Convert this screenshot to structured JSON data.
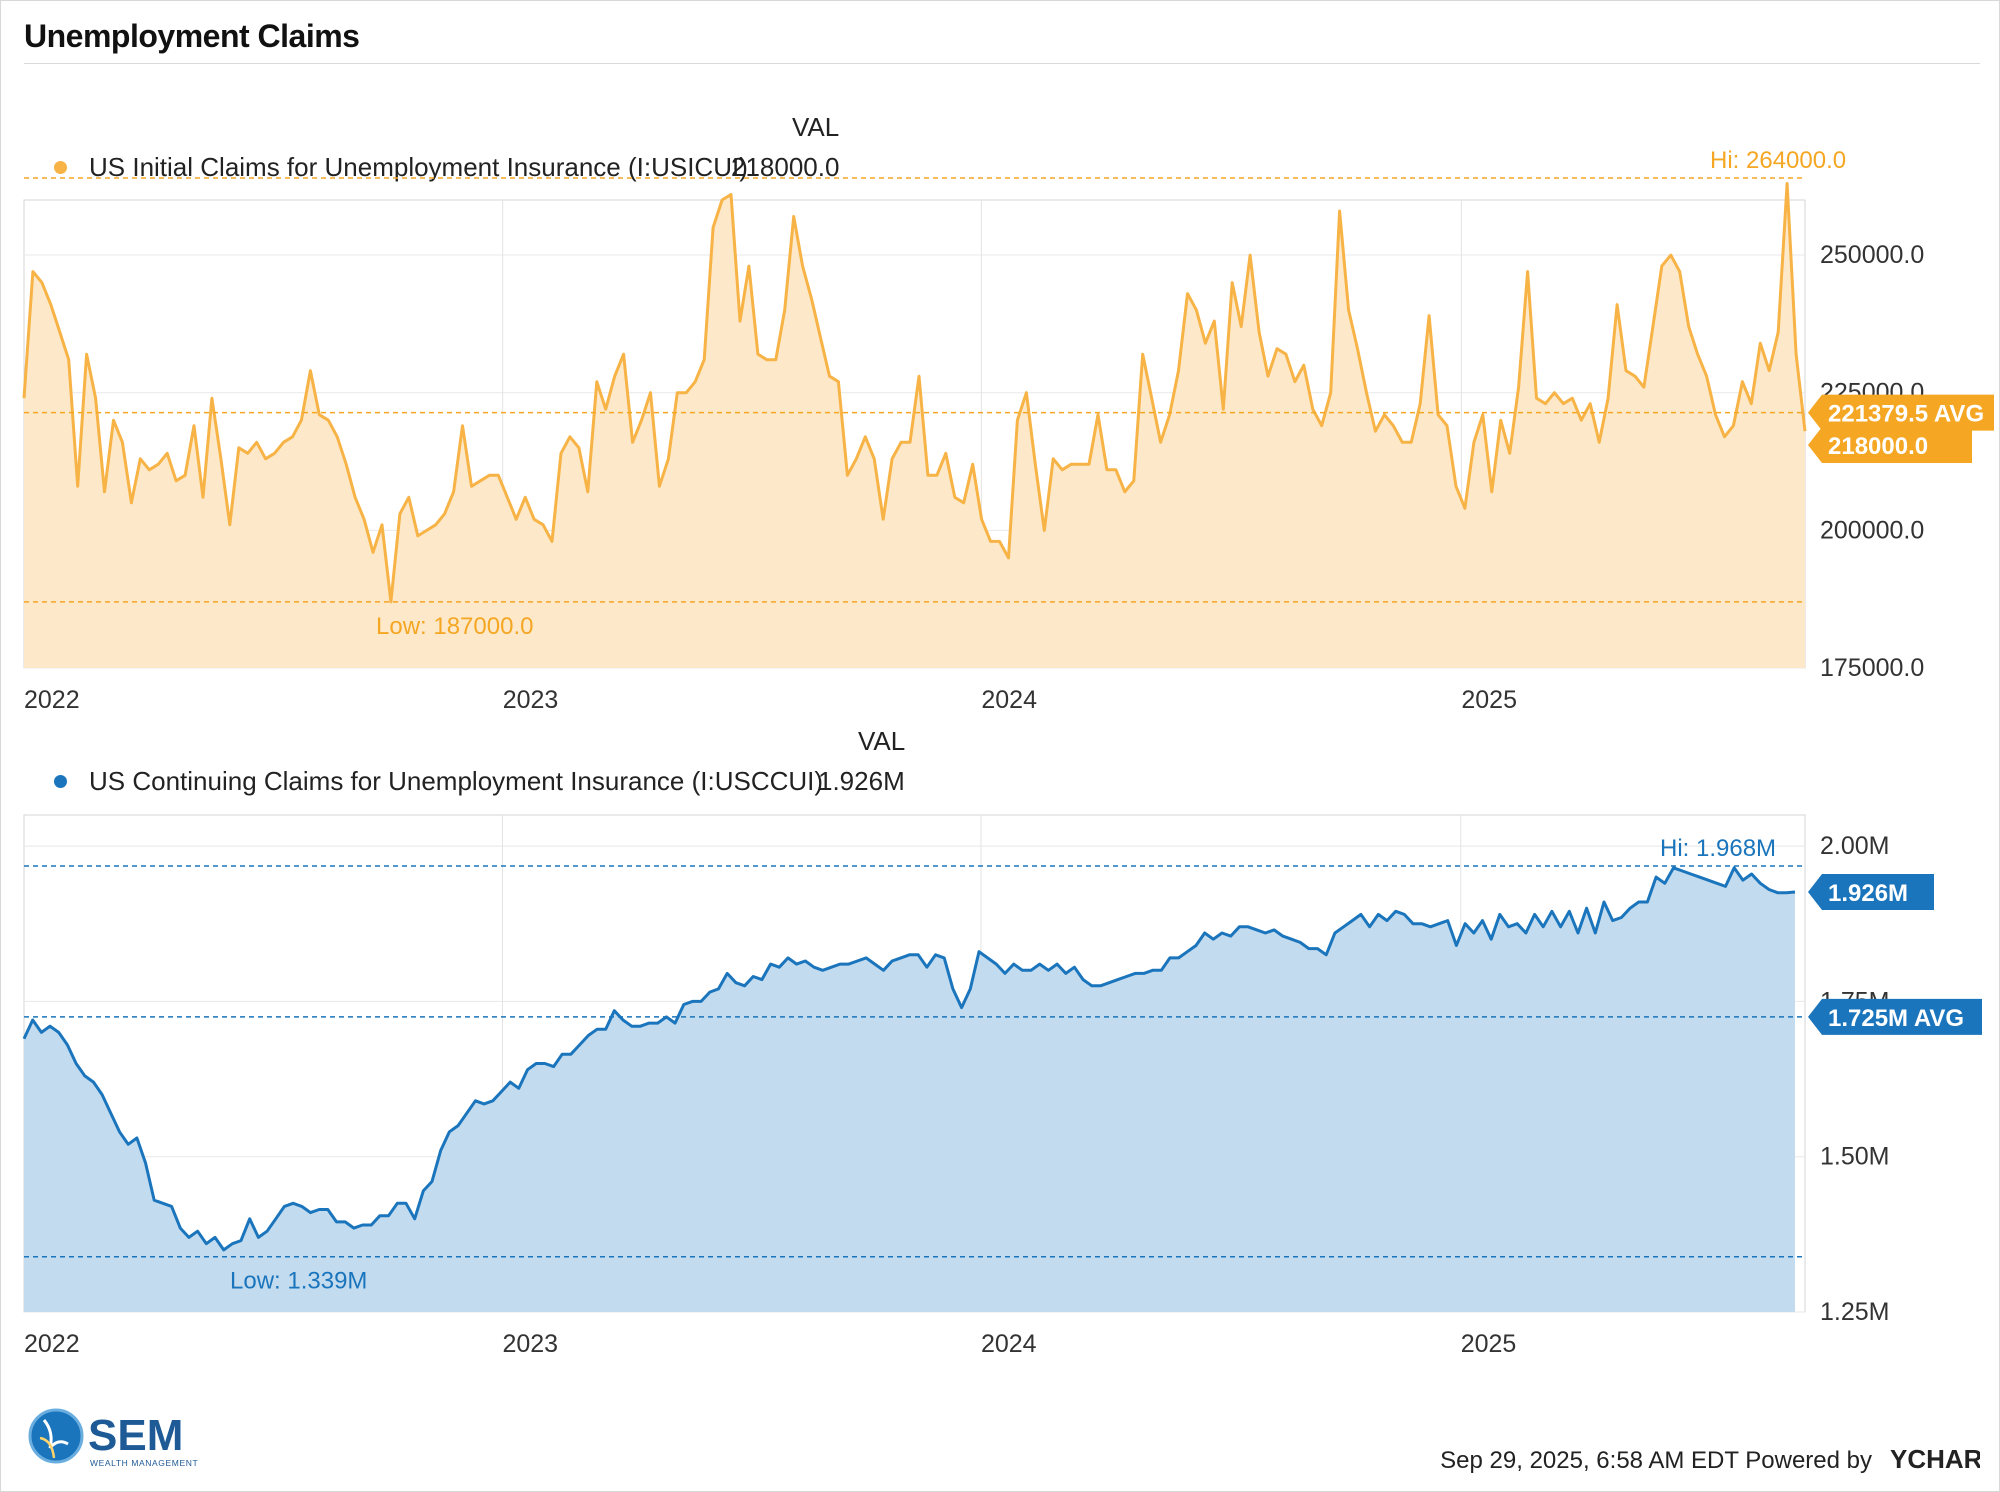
{
  "header": {
    "title": "Unemployment Claims"
  },
  "chart_data": [
    {
      "type": "area",
      "legend_header": "VAL",
      "series": [
        {
          "name": "US Initial Claims for Unemployment Insurance (I:USICUI)",
          "latest_value": "218000.0",
          "color": "#f7b346"
        }
      ],
      "x_ticks": [
        "2022",
        "2023",
        "2024",
        "2025"
      ],
      "y_ticks": [
        "175000.0",
        "200000.0",
        "225000.0",
        "250000.0"
      ],
      "ylim": [
        175000,
        260000
      ],
      "hi_label": "Hi: 264000.0",
      "low_label": "Low: 187000.0",
      "avg_label": "221379.5 AVG",
      "last_label": "218000.0",
      "x_start": "2022-01-01",
      "x_end": "2025-09-20",
      "values": [
        224000,
        247000,
        245000,
        241000,
        236000,
        231000,
        208000,
        232000,
        224000,
        207000,
        220000,
        216000,
        205000,
        213000,
        211000,
        212000,
        214000,
        209000,
        210000,
        219000,
        206000,
        224000,
        213000,
        201000,
        215000,
        214000,
        216000,
        213000,
        214000,
        216000,
        217000,
        220000,
        229000,
        221000,
        220000,
        217000,
        212000,
        206000,
        202000,
        196000,
        201000,
        187000,
        203000,
        206000,
        199000,
        200000,
        201000,
        203000,
        207000,
        219000,
        208000,
        209000,
        210000,
        210000,
        206000,
        202000,
        206000,
        202000,
        201000,
        198000,
        214000,
        217000,
        215000,
        207000,
        227000,
        222000,
        228000,
        232000,
        216000,
        220000,
        225000,
        208000,
        213000,
        225000,
        225000,
        227000,
        231000,
        255000,
        260000,
        261000,
        238000,
        248000,
        232000,
        231000,
        231000,
        240000,
        257000,
        248000,
        242000,
        235000,
        228000,
        227000,
        210000,
        213000,
        217000,
        213000,
        202000,
        213000,
        216000,
        216000,
        228000,
        210000,
        210000,
        214000,
        206000,
        205000,
        212000,
        202000,
        198000,
        198000,
        195000,
        220000,
        225000,
        212000,
        200000,
        213000,
        211000,
        212000,
        212000,
        212000,
        221000,
        211000,
        211000,
        207000,
        209000,
        232000,
        224000,
        216000,
        221000,
        229000,
        243000,
        240000,
        234000,
        238000,
        222000,
        245000,
        237000,
        250000,
        236000,
        228000,
        233000,
        232000,
        227000,
        230000,
        222000,
        219000,
        225000,
        258000,
        240000,
        233000,
        225000,
        218000,
        221000,
        219000,
        216000,
        216000,
        223000,
        239000,
        221000,
        219000,
        208000,
        204000,
        216000,
        221000,
        207000,
        220000,
        214000,
        226000,
        247000,
        224000,
        223000,
        225000,
        223000,
        224000,
        220000,
        223000,
        216000,
        224000,
        241000,
        229000,
        228000,
        226000,
        237000,
        248000,
        250000,
        247000,
        237000,
        232000,
        228000,
        221000,
        217000,
        219000,
        227000,
        223000,
        234000,
        229000,
        236000,
        263000,
        232000,
        218000
      ]
    },
    {
      "type": "area",
      "legend_header": "VAL",
      "series": [
        {
          "name": "US Continuing Claims for Unemployment Insurance (I:USCCUI)",
          "latest_value": "1.926M",
          "color": "#1a75bc"
        }
      ],
      "x_ticks": [
        "2022",
        "2023",
        "2024",
        "2025"
      ],
      "y_ticks": [
        "1.25M",
        "1.50M",
        "1.75M",
        "2.00M"
      ],
      "ylim": [
        1.25,
        2.05
      ],
      "hi_label": "Hi: 1.968M",
      "low_label": "Low: 1.339M",
      "avg_label": "1.725M AVG",
      "last_label": "1.926M",
      "x_start": "2022-01-01",
      "x_end": "2025-09-13",
      "values": [
        1.69,
        1.72,
        1.7,
        1.71,
        1.7,
        1.68,
        1.65,
        1.63,
        1.62,
        1.6,
        1.57,
        1.54,
        1.52,
        1.53,
        1.49,
        1.43,
        1.425,
        1.42,
        1.385,
        1.37,
        1.38,
        1.36,
        1.37,
        1.35,
        1.36,
        1.365,
        1.4,
        1.37,
        1.38,
        1.4,
        1.42,
        1.425,
        1.42,
        1.41,
        1.415,
        1.415,
        1.395,
        1.395,
        1.385,
        1.39,
        1.39,
        1.405,
        1.405,
        1.425,
        1.425,
        1.4,
        1.445,
        1.46,
        1.51,
        1.54,
        1.55,
        1.57,
        1.59,
        1.585,
        1.59,
        1.605,
        1.62,
        1.61,
        1.64,
        1.65,
        1.65,
        1.645,
        1.665,
        1.665,
        1.68,
        1.695,
        1.705,
        1.705,
        1.735,
        1.72,
        1.71,
        1.71,
        1.715,
        1.715,
        1.725,
        1.715,
        1.745,
        1.75,
        1.75,
        1.765,
        1.77,
        1.795,
        1.78,
        1.775,
        1.79,
        1.785,
        1.81,
        1.805,
        1.82,
        1.81,
        1.815,
        1.805,
        1.8,
        1.805,
        1.81,
        1.81,
        1.815,
        1.82,
        1.81,
        1.8,
        1.815,
        1.82,
        1.825,
        1.825,
        1.805,
        1.825,
        1.82,
        1.77,
        1.74,
        1.77,
        1.83,
        1.82,
        1.81,
        1.795,
        1.81,
        1.8,
        1.8,
        1.81,
        1.8,
        1.81,
        1.795,
        1.805,
        1.785,
        1.775,
        1.775,
        1.78,
        1.785,
        1.79,
        1.795,
        1.795,
        1.8,
        1.8,
        1.82,
        1.82,
        1.83,
        1.84,
        1.86,
        1.85,
        1.86,
        1.855,
        1.87,
        1.87,
        1.865,
        1.86,
        1.865,
        1.855,
        1.85,
        1.845,
        1.835,
        1.835,
        1.825,
        1.86,
        1.87,
        1.88,
        1.89,
        1.87,
        1.89,
        1.88,
        1.895,
        1.89,
        1.875,
        1.875,
        1.87,
        1.875,
        1.88,
        1.84,
        1.875,
        1.86,
        1.88,
        1.85,
        1.89,
        1.87,
        1.875,
        1.86,
        1.89,
        1.87,
        1.895,
        1.87,
        1.895,
        1.86,
        1.9,
        1.86,
        1.91,
        1.88,
        1.885,
        1.9,
        1.91,
        1.91,
        1.95,
        1.94,
        1.965,
        1.96,
        1.955,
        1.95,
        1.945,
        1.94,
        1.935,
        1.965,
        1.945,
        1.955,
        1.94,
        1.93,
        1.925,
        1.925,
        1.926
      ]
    }
  ],
  "footer": {
    "logo_text": "SEM",
    "logo_subtext": "WEALTH MANAGEMENT",
    "timestamp": "Sep 29, 2025, 6:58 AM EDT Powered by",
    "brand": "YCHARTS"
  },
  "colors": {
    "orange": "#f7b346",
    "orange_fill": "#fde9c9",
    "blue": "#1a75bc",
    "blue_fill": "#c3dbef"
  }
}
